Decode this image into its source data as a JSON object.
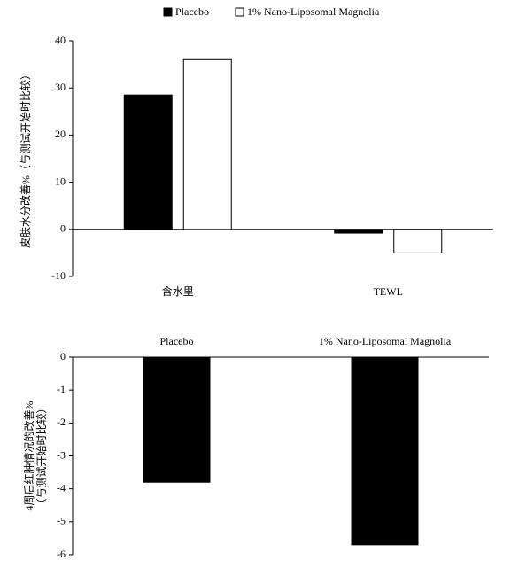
{
  "chart_data": [
    {
      "type": "bar",
      "categories": [
        "含水里",
        "TEWL"
      ],
      "series": [
        {
          "name": "Placebo",
          "color": "#000000",
          "values": [
            28.5,
            -0.8
          ]
        },
        {
          "name": "1% Nano-Liposomal Magnolia",
          "color": "#ffffff",
          "values": [
            36,
            -5
          ]
        }
      ],
      "ylabel": "皮肤水分改善%（与测试开始时比较）",
      "ylim": [
        -10,
        40
      ],
      "yticks": [
        -10,
        0,
        10,
        20,
        30,
        40
      ],
      "legend": "top"
    },
    {
      "type": "bar",
      "categories": [
        "Placebo",
        "1% Nano-Liposomal Magnolia"
      ],
      "values": [
        -3.8,
        -5.7
      ],
      "color": "#000000",
      "ylabel": [
        "4周后红肿情况的改善%",
        "（与测试开始时比较）"
      ],
      "ylim": [
        -6,
        0
      ],
      "yticks": [
        -6,
        -5,
        -4,
        -3,
        -2,
        -1,
        0
      ]
    }
  ]
}
